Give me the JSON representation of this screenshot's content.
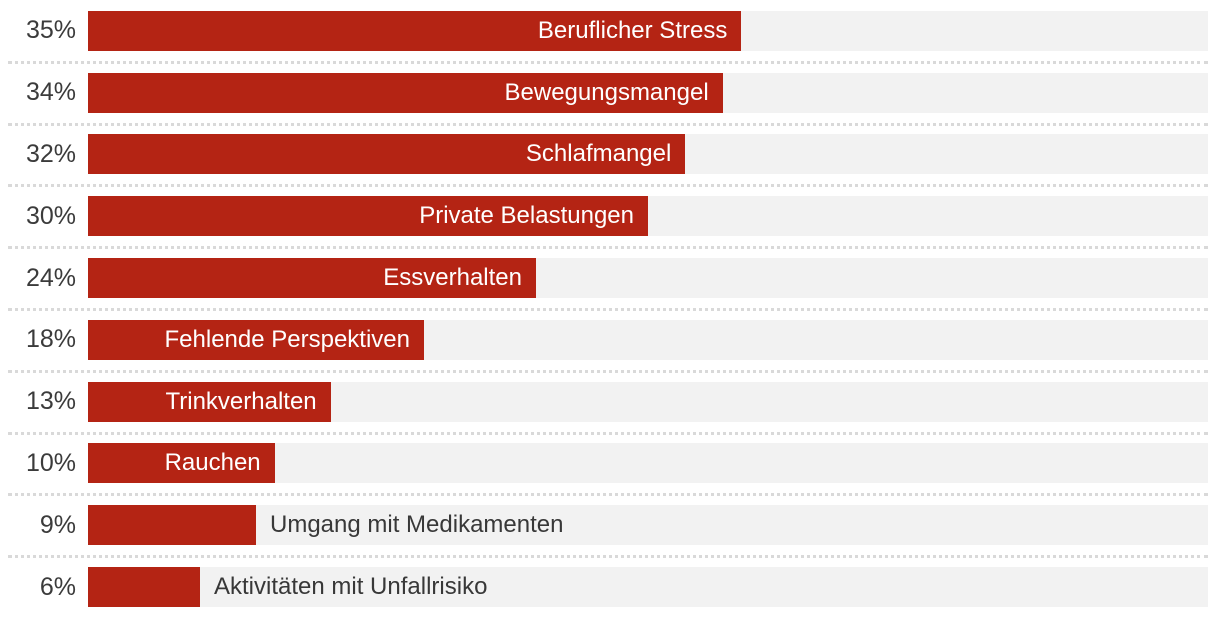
{
  "chart_data": {
    "type": "bar",
    "orientation": "horizontal",
    "title": "",
    "xlabel": "",
    "ylabel": "",
    "xlim": [
      0,
      60
    ],
    "grid": false,
    "legend": false,
    "categories": [
      "Beruflicher Stress",
      "Bewegungsmangel",
      "Schlafmangel",
      "Private Belastungen",
      "Essverhalten",
      "Fehlende Perspektiven",
      "Trinkverhalten",
      "Rauchen",
      "Umgang mit Medikamenten",
      "Aktivitäten mit Unfallrisiko"
    ],
    "values": [
      35,
      34,
      32,
      30,
      24,
      18,
      13,
      10,
      9,
      6
    ],
    "value_labels": [
      "35%",
      "34%",
      "32%",
      "30%",
      "24%",
      "18%",
      "13%",
      "10%",
      "9%",
      "6%"
    ],
    "label_placement": [
      "inside",
      "inside",
      "inside",
      "inside",
      "inside",
      "inside",
      "inside",
      "inside",
      "outside",
      "outside"
    ],
    "colors": {
      "bar": "#b42414",
      "track": "#f2f2f2",
      "separator": "#d9d9d9",
      "value_text": "#3b3b3b",
      "inside_label_text": "#ffffff",
      "outside_label_text": "#383838",
      "background": "#ffffff"
    }
  }
}
